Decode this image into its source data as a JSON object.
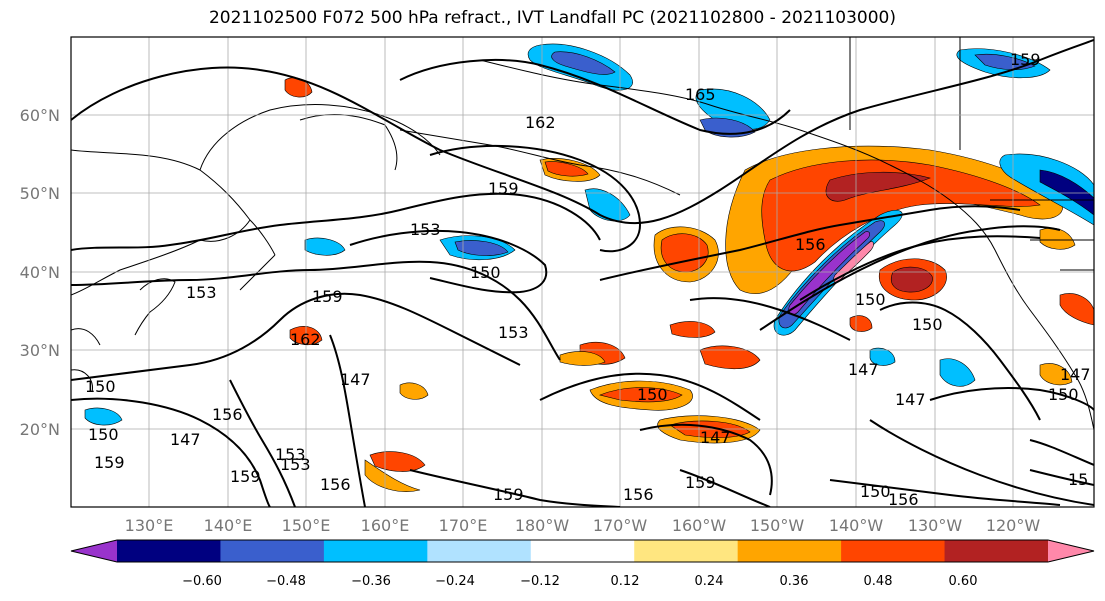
{
  "title": "2021102500 F072 500 hPa refract., IVT Landfall PC (2021102800 - 2021103000)",
  "latitude_labels": [
    "60°N",
    "50°N",
    "40°N",
    "30°N",
    "20°N"
  ],
  "longitude_labels": [
    "130°E",
    "140°E",
    "150°E",
    "160°E",
    "170°E",
    "180°W",
    "170°W",
    "160°W",
    "150°W",
    "140°W",
    "130°W",
    "120°W"
  ],
  "colorbar": {
    "ticks": [
      "−0.60",
      "−0.48",
      "−0.36",
      "−0.24",
      "−0.12",
      "0.12",
      "0.24",
      "0.36",
      "0.48",
      "0.60"
    ],
    "colors": [
      "#9933cc",
      "#000080",
      "#3a5fcd",
      "#00bfff",
      "#b0e2ff",
      "#ffffff",
      "#ffe680",
      "#ffa500",
      "#ff4500",
      "#b22222",
      "#ff88aa"
    ]
  },
  "contour_labels": [
    {
      "text": "162"
    },
    {
      "text": "165"
    },
    {
      "text": "159"
    },
    {
      "text": "153"
    },
    {
      "text": "150"
    },
    {
      "text": "153"
    },
    {
      "text": "159"
    },
    {
      "text": "162"
    },
    {
      "text": "153"
    },
    {
      "text": "150"
    },
    {
      "text": "147"
    },
    {
      "text": "150"
    },
    {
      "text": "153"
    },
    {
      "text": "156"
    },
    {
      "text": "159"
    },
    {
      "text": "153"
    },
    {
      "text": "156"
    },
    {
      "text": "159"
    },
    {
      "text": "156"
    },
    {
      "text": "150"
    },
    {
      "text": "147"
    },
    {
      "text": "150"
    },
    {
      "text": "156"
    },
    {
      "text": "150"
    },
    {
      "text": "147"
    },
    {
      "text": "147"
    },
    {
      "text": "150"
    },
    {
      "text": "147"
    },
    {
      "text": "159"
    },
    {
      "text": "15"
    },
    {
      "text": "150"
    },
    {
      "text": "147"
    },
    {
      "text": "156"
    },
    {
      "text": "159"
    },
    {
      "text": "159"
    }
  ]
}
